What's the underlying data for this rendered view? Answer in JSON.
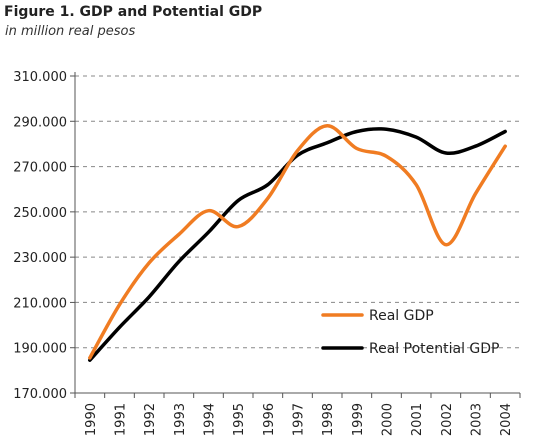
{
  "chart_data": {
    "type": "line",
    "title": "Figure 1. GDP and Potential GDP",
    "subtitle": "in million real pesos",
    "xlabel": "",
    "ylabel": "",
    "categories": [
      "1990",
      "1991",
      "1992",
      "1993",
      "1994",
      "1995",
      "1996",
      "1997",
      "1998",
      "1999",
      "2000",
      "2001",
      "2002",
      "2003",
      "2004"
    ],
    "ylim": [
      170000,
      310000
    ],
    "yticks": [
      170000,
      190000,
      210000,
      230000,
      250000,
      270000,
      290000,
      310000
    ],
    "ytick_labels": [
      "170.000",
      "190.000",
      "210.000",
      "230.000",
      "250.000",
      "270.000",
      "290.000",
      "310.000"
    ],
    "grid": "horizontal-dashed",
    "legend_position": "lower-right",
    "series": [
      {
        "name": "Real GDP",
        "color": "#f07c22",
        "values": [
          185500,
          209000,
          227500,
          240000,
          250500,
          243500,
          256000,
          277000,
          288000,
          278000,
          274500,
          262000,
          235500,
          258000,
          279000
        ]
      },
      {
        "name": "Real Potential GDP",
        "color": "#000000",
        "values": [
          184500,
          199000,
          212500,
          228000,
          241000,
          255000,
          262000,
          275000,
          280500,
          285500,
          286500,
          283000,
          276000,
          279000,
          285500
        ]
      }
    ]
  }
}
